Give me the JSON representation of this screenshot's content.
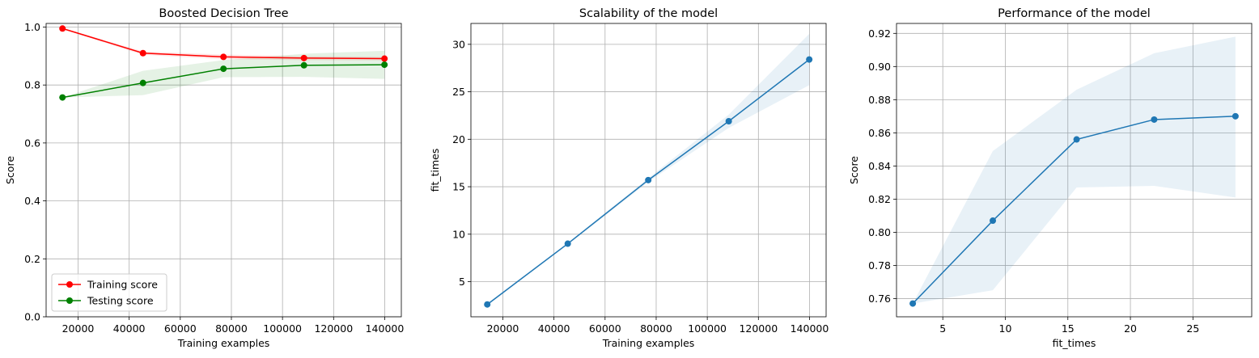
{
  "chart_data": [
    {
      "type": "line",
      "title": "Boosted Decision Tree",
      "xlabel": "Training examples",
      "ylabel": "Score",
      "xlim": [
        7500,
        146500
      ],
      "ylim": [
        0.0,
        1.0125
      ],
      "xticks": [
        20000,
        40000,
        60000,
        80000,
        100000,
        120000,
        140000
      ],
      "xtick_labels": [
        "20000",
        "40000",
        "60000",
        "80000",
        "100000",
        "120000",
        "140000"
      ],
      "yticks": [
        0.0,
        0.2,
        0.4,
        0.6,
        0.8,
        1.0
      ],
      "ytick_labels": [
        "0.0",
        "0.2",
        "0.4",
        "0.6",
        "0.8",
        "1.0"
      ],
      "grid": true,
      "legend": "lower-left",
      "x": [
        13900,
        45400,
        76900,
        108400,
        139900
      ],
      "series": [
        {
          "name": "Training score",
          "values": [
            0.995,
            0.91,
            0.897,
            0.893,
            0.891
          ],
          "band_low": [
            0.993,
            0.904,
            0.889,
            0.886,
            0.885
          ],
          "band_high": [
            0.997,
            0.916,
            0.905,
            0.9,
            0.897
          ],
          "color": "#ff0000"
        },
        {
          "name": "Testing score",
          "values": [
            0.757,
            0.807,
            0.856,
            0.868,
            0.87
          ],
          "band_low": [
            0.757,
            0.765,
            0.827,
            0.828,
            0.821
          ],
          "band_high": [
            0.757,
            0.849,
            0.886,
            0.908,
            0.918
          ],
          "color": "#008000"
        }
      ]
    },
    {
      "type": "line",
      "title": "Scalability of the model",
      "xlabel": "Training examples",
      "ylabel": "fit_times",
      "xlim": [
        7500,
        146500
      ],
      "ylim": [
        1.3,
        32.2
      ],
      "xticks": [
        20000,
        40000,
        60000,
        80000,
        100000,
        120000,
        140000
      ],
      "xtick_labels": [
        "20000",
        "40000",
        "60000",
        "80000",
        "100000",
        "120000",
        "140000"
      ],
      "yticks": [
        5,
        10,
        15,
        20,
        25,
        30
      ],
      "ytick_labels": [
        "5",
        "10",
        "15",
        "20",
        "25",
        "30"
      ],
      "grid": true,
      "x": [
        13900,
        45400,
        76900,
        108400,
        139900
      ],
      "series": [
        {
          "values": [
            2.6,
            9.0,
            15.7,
            21.9,
            28.4
          ],
          "band_low": [
            2.5,
            8.9,
            15.5,
            21.2,
            25.7
          ],
          "band_high": [
            2.7,
            9.1,
            15.9,
            22.6,
            31.1
          ],
          "color": "#1f77b4"
        }
      ]
    },
    {
      "type": "line",
      "title": "Performance of the model",
      "xlabel": "fit_times",
      "ylabel": "Score",
      "xlim": [
        1.3,
        29.7
      ],
      "ylim": [
        0.749,
        0.926
      ],
      "xticks": [
        5,
        10,
        15,
        20,
        25
      ],
      "xtick_labels": [
        "5",
        "10",
        "15",
        "20",
        "25"
      ],
      "yticks": [
        0.76,
        0.78,
        0.8,
        0.82,
        0.84,
        0.86,
        0.88,
        0.9,
        0.92
      ],
      "ytick_labels": [
        "0.76",
        "0.78",
        "0.80",
        "0.82",
        "0.84",
        "0.86",
        "0.88",
        "0.90",
        "0.92"
      ],
      "grid": true,
      "x": [
        2.6,
        9.0,
        15.7,
        21.9,
        28.4
      ],
      "series": [
        {
          "values": [
            0.757,
            0.807,
            0.856,
            0.868,
            0.87
          ],
          "band_low": [
            0.757,
            0.765,
            0.827,
            0.828,
            0.821
          ],
          "band_high": [
            0.757,
            0.849,
            0.886,
            0.908,
            0.918
          ],
          "color": "#1f77b4"
        }
      ]
    }
  ]
}
